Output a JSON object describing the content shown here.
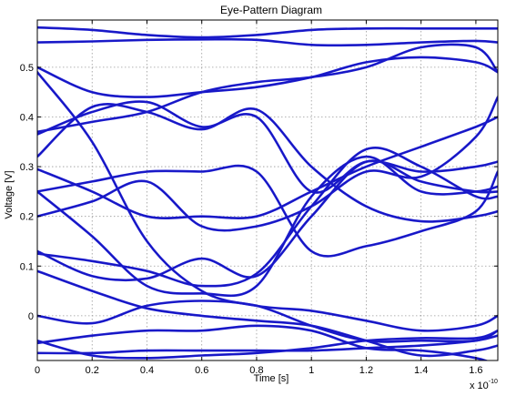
{
  "chart_data": {
    "type": "line",
    "title": "Eye-Pattern Diagram",
    "xlabel": "Time [s]",
    "ylabel": "Voltage [V]",
    "x_multiplier_base": "x 10",
    "x_multiplier_exp": "-10",
    "xlim": [
      0,
      1.68
    ],
    "ylim": [
      -0.09,
      0.595
    ],
    "xticks": [
      0,
      0.2,
      0.4,
      0.6,
      0.8,
      1,
      1.2,
      1.4,
      1.6
    ],
    "xtick_labels": [
      "0",
      "0.2",
      "0.4",
      "0.6",
      "0.8",
      "1",
      "1.2",
      "1.4",
      "1.6"
    ],
    "yticks": [
      0,
      0.1,
      0.2,
      0.3,
      0.4,
      0.5
    ],
    "ytick_labels": [
      "0",
      "0.1",
      "0.2",
      "0.3",
      "0.4",
      "0.5"
    ],
    "grid": true,
    "line_color": "#1f1fd0",
    "x": [
      0,
      0.2,
      0.4,
      0.6,
      0.8,
      1.0,
      1.2,
      1.4,
      1.6,
      1.68
    ],
    "series": [
      {
        "values": [
          0.58,
          0.575,
          0.565,
          0.56,
          0.565,
          0.575,
          0.578,
          0.578,
          0.578,
          0.578
        ]
      },
      {
        "values": [
          0.55,
          0.552,
          0.555,
          0.556,
          0.555,
          0.545,
          0.545,
          0.55,
          0.553,
          0.55
        ]
      },
      {
        "values": [
          0.37,
          0.39,
          0.41,
          0.45,
          0.47,
          0.48,
          0.5,
          0.54,
          0.54,
          0.49
        ]
      },
      {
        "values": [
          0.5,
          0.45,
          0.44,
          0.45,
          0.46,
          0.48,
          0.51,
          0.52,
          0.51,
          0.49
        ]
      },
      {
        "values": [
          0.32,
          0.42,
          0.41,
          0.375,
          0.415,
          0.3,
          0.22,
          0.19,
          0.2,
          0.21
        ]
      },
      {
        "values": [
          0.365,
          0.41,
          0.43,
          0.38,
          0.4,
          0.25,
          0.31,
          0.29,
          0.3,
          0.31
        ]
      },
      {
        "values": [
          0.25,
          0.27,
          0.29,
          0.29,
          0.29,
          0.13,
          0.14,
          0.17,
          0.21,
          0.29
        ]
      },
      {
        "values": [
          0.295,
          0.25,
          0.2,
          0.2,
          0.2,
          0.25,
          0.3,
          0.34,
          0.38,
          0.4
        ]
      },
      {
        "values": [
          0.2,
          0.23,
          0.27,
          0.18,
          0.18,
          0.22,
          0.29,
          0.28,
          0.36,
          0.44
        ]
      },
      {
        "values": [
          0.13,
          0.08,
          0.075,
          0.115,
          0.08,
          0.2,
          0.31,
          0.27,
          0.25,
          0.25
        ]
      },
      {
        "values": [
          0.125,
          0.11,
          0.09,
          0.06,
          0.085,
          0.22,
          0.335,
          0.3,
          0.24,
          0.24
        ]
      },
      {
        "values": [
          0.25,
          0.16,
          0.06,
          0.045,
          0.06,
          0.24,
          0.32,
          0.25,
          0.25,
          0.26
        ]
      },
      {
        "values": [
          0.49,
          0.35,
          0.15,
          0.05,
          0.02,
          0.01,
          -0.01,
          -0.03,
          -0.02,
          0.0
        ]
      },
      {
        "values": [
          0.09,
          0.05,
          0.015,
          0.0,
          -0.01,
          -0.02,
          -0.05,
          -0.08,
          -0.07,
          -0.06
        ]
      },
      {
        "values": [
          -0.055,
          -0.04,
          -0.03,
          -0.03,
          -0.02,
          -0.03,
          -0.065,
          -0.07,
          -0.085,
          -0.1
        ]
      },
      {
        "values": [
          -0.05,
          -0.08,
          -0.085,
          -0.08,
          -0.075,
          -0.065,
          -0.05,
          -0.045,
          -0.045,
          -0.03
        ]
      },
      {
        "values": [
          -0.075,
          -0.075,
          -0.07,
          -0.07,
          -0.07,
          -0.07,
          -0.065,
          -0.06,
          -0.05,
          -0.04
        ]
      },
      {
        "values": [
          0.0,
          -0.015,
          0.02,
          0.03,
          0.02,
          -0.02,
          -0.05,
          -0.05,
          -0.05,
          -0.03
        ]
      }
    ]
  }
}
